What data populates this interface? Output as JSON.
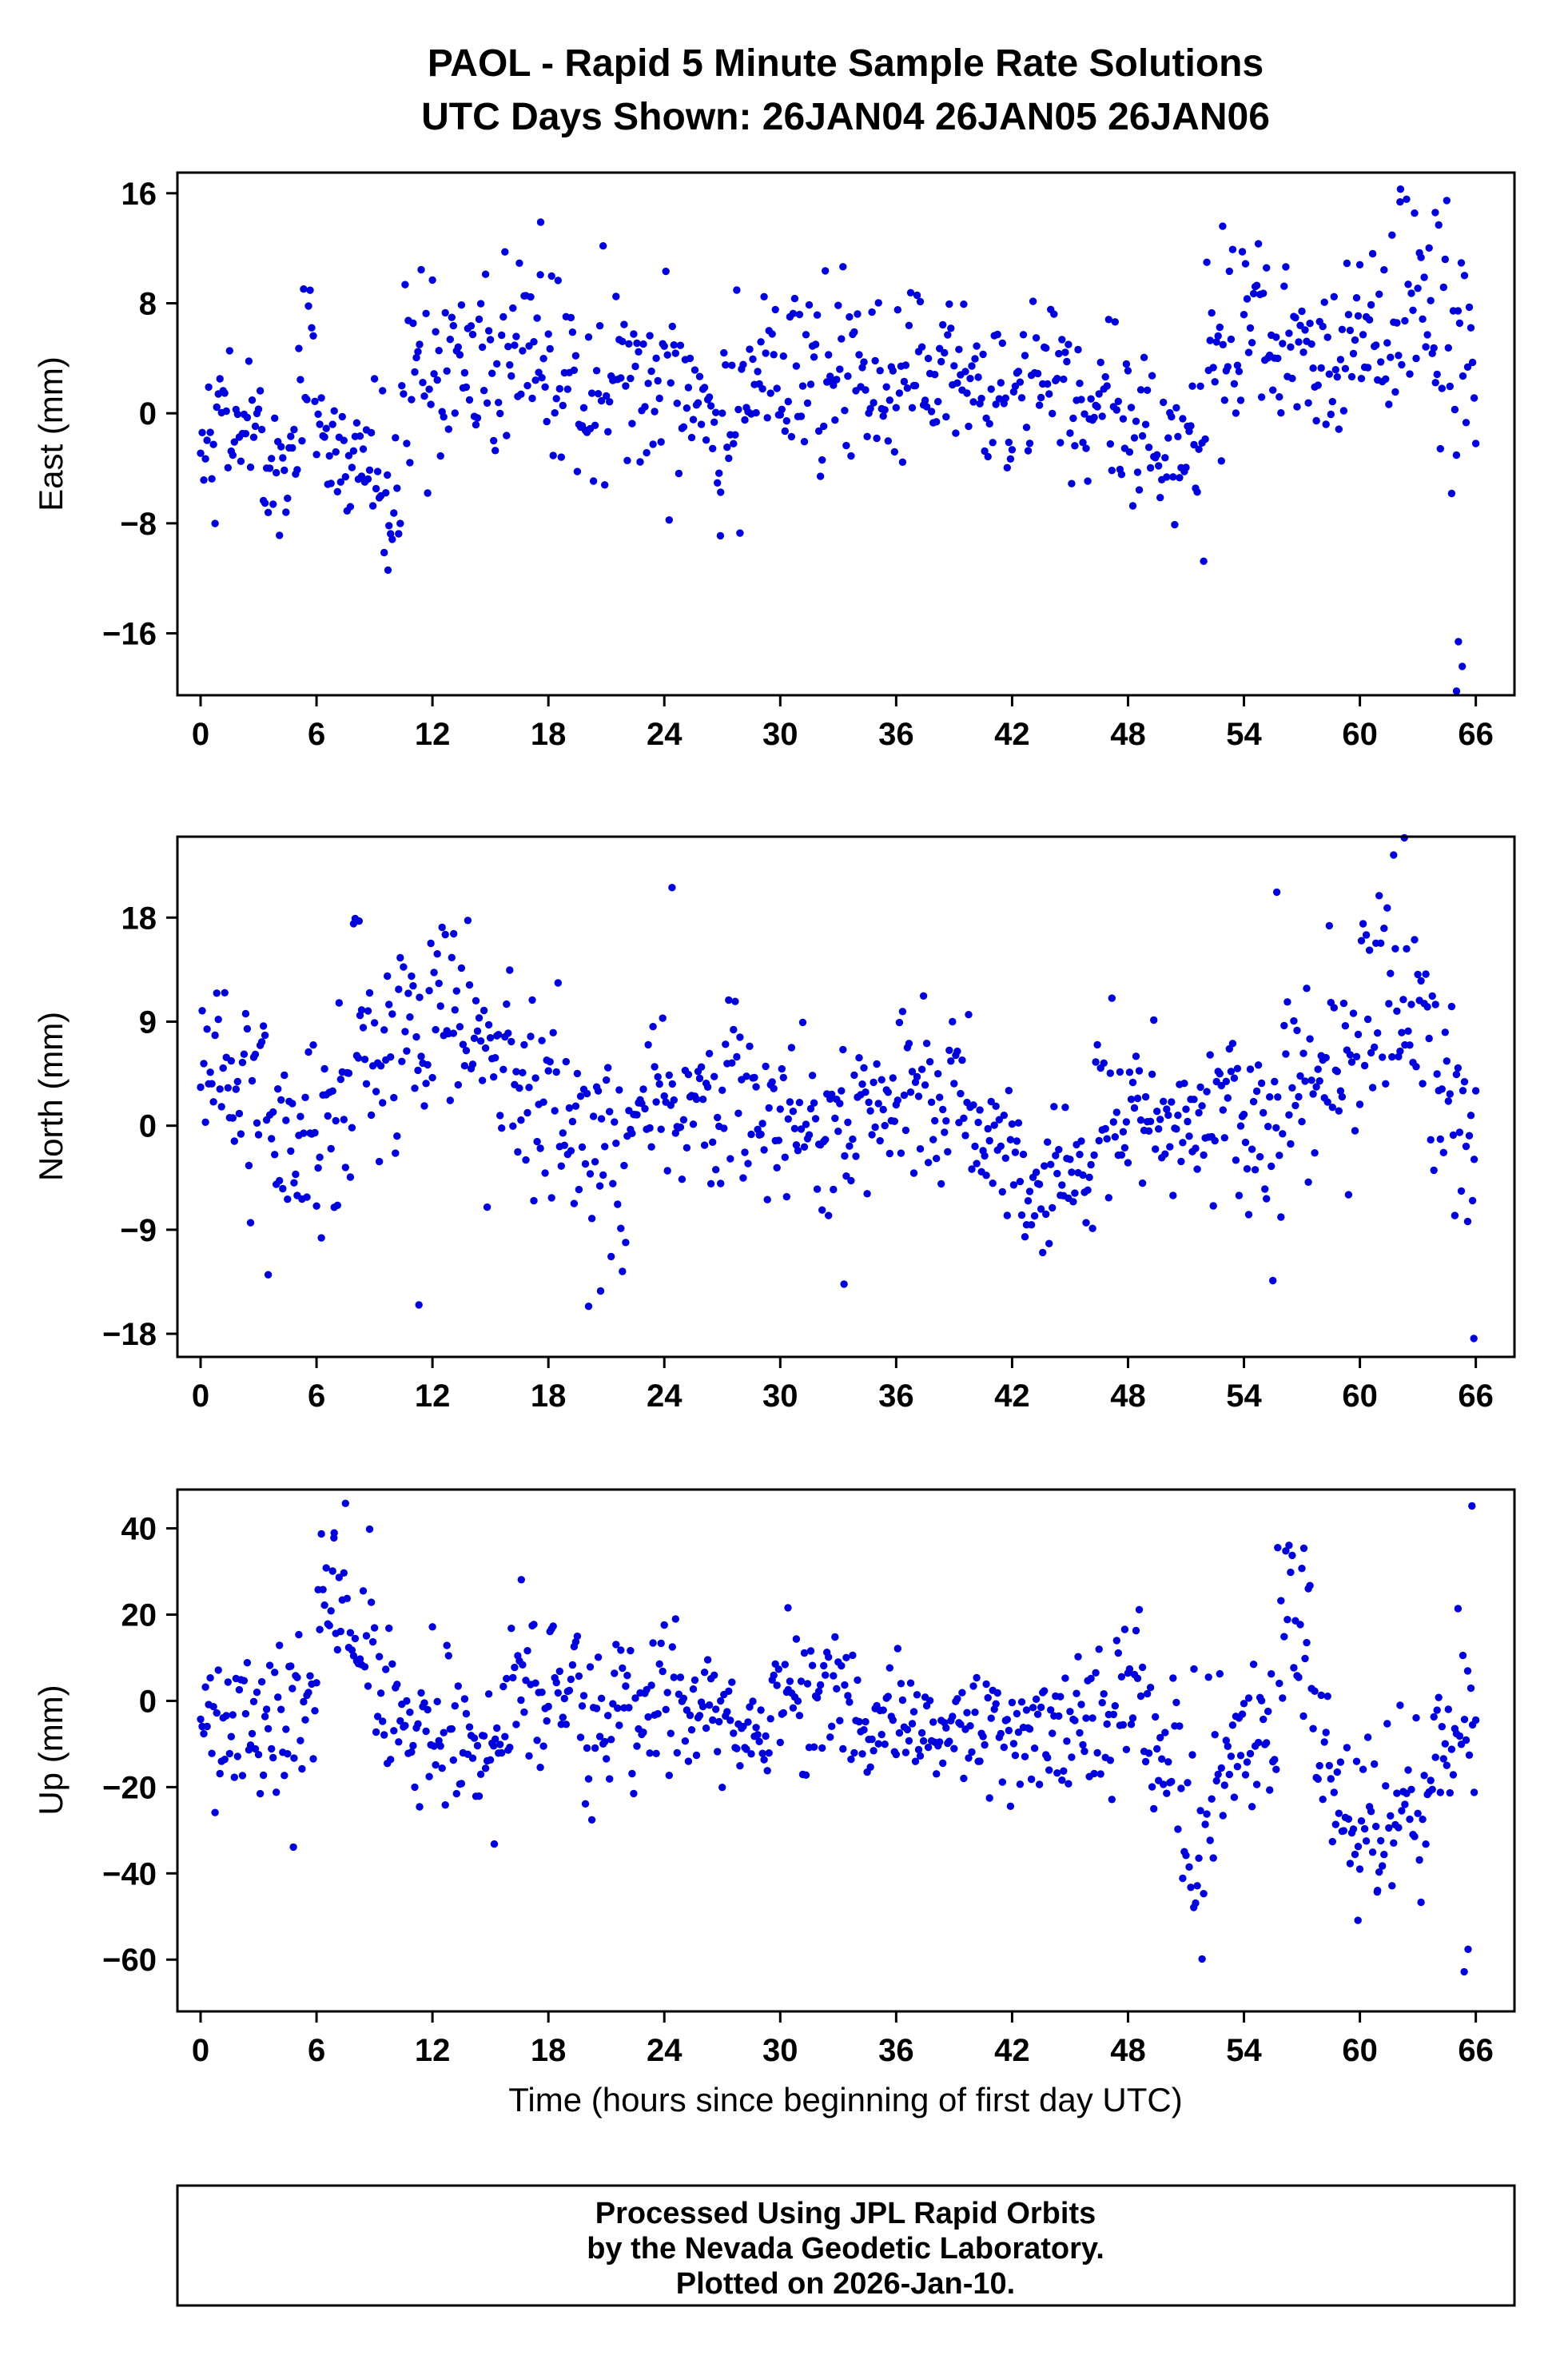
{
  "footer": {
    "line1": "Processed Using JPL Rapid Orbits",
    "line2": "by the Nevada Geodetic Laboratory.",
    "line3": "Plotted on 2026-Jan-10."
  },
  "chart_data": {
    "type": "scatter",
    "title": "PAOL - Rapid 5 Minute Sample Rate Solutions",
    "subtitle": "UTC Days Shown:  26JAN04 26JAN05 26JAN06",
    "xlabel": "Time (hours since beginning of first day UTC)",
    "marker_color": "#0000dd",
    "marker_radius_px": 4.7,
    "grid": false,
    "xlim": [
      -1.2,
      68
    ],
    "x_ticks": [
      0,
      6,
      12,
      18,
      24,
      30,
      36,
      42,
      48,
      54,
      60,
      66
    ],
    "sample_interval_hours": 0.08333,
    "panels": [
      {
        "name": "east",
        "ylabel": "East (mm)",
        "ylim": [
          -20.5,
          17.5
        ],
        "y_ticks": [
          -16,
          -8,
          0,
          8,
          16
        ],
        "seed": 42,
        "segments": [
          [
            0,
            3,
            -0.8,
            2.2
          ],
          [
            3,
            5,
            -3.5,
            2.5
          ],
          [
            5,
            6.5,
            2,
            4
          ],
          [
            6.5,
            9,
            -3.5,
            2.5
          ],
          [
            9,
            10.5,
            -5,
            3.5
          ],
          [
            10.5,
            13,
            3,
            4
          ],
          [
            13,
            15,
            2.5,
            3.5
          ],
          [
            15,
            18,
            4,
            4
          ],
          [
            18,
            21,
            3,
            3.5
          ],
          [
            21,
            24,
            2,
            4
          ],
          [
            24,
            26,
            2.5,
            4
          ],
          [
            26,
            28,
            1,
            4
          ],
          [
            28,
            31,
            3,
            3
          ],
          [
            31,
            34,
            2,
            3
          ],
          [
            34,
            37,
            2.5,
            2.8
          ],
          [
            37,
            40,
            3,
            3.2
          ],
          [
            40,
            43,
            1,
            3
          ],
          [
            43,
            45,
            2.5,
            3
          ],
          [
            45,
            48,
            0,
            3
          ],
          [
            48,
            50,
            -1.5,
            2.8
          ],
          [
            50,
            52,
            -2,
            3
          ],
          [
            52,
            54,
            4,
            3.5
          ],
          [
            54,
            57,
            5,
            3.5
          ],
          [
            57,
            59,
            3,
            3
          ],
          [
            59,
            61,
            5,
            3.5
          ],
          [
            61,
            63,
            6,
            4.5
          ],
          [
            63,
            64.5,
            7,
            4.5
          ],
          [
            64.5,
            66,
            2,
            5
          ]
        ],
        "outliers": [
          [
            9.7,
            -11.4
          ],
          [
            17.6,
            13.9
          ],
          [
            62.1,
            16.3
          ],
          [
            63.9,
            14.6
          ],
          [
            65.1,
            -16.6
          ],
          [
            65.3,
            -18.4
          ],
          [
            65.0,
            -20.2
          ],
          [
            26.9,
            -8.9
          ],
          [
            52.9,
            13.6
          ]
        ]
      },
      {
        "name": "north",
        "ylabel": "North (mm)",
        "ylim": [
          -20,
          25
        ],
        "y_ticks": [
          -18,
          -9,
          0,
          9,
          18
        ],
        "seed": 137,
        "segments": [
          [
            0,
            1.5,
            5,
            4
          ],
          [
            1.5,
            3.5,
            2,
            4.5
          ],
          [
            3.5,
            5.5,
            -2,
            4
          ],
          [
            5.5,
            7.5,
            0,
            4.5
          ],
          [
            7.5,
            9.5,
            6,
            4.5
          ],
          [
            9.5,
            12,
            8,
            4.5
          ],
          [
            12,
            14.5,
            9,
            4
          ],
          [
            14.5,
            16.5,
            5,
            4
          ],
          [
            16.5,
            18.5,
            4,
            4.5
          ],
          [
            18.5,
            20,
            0,
            3.5
          ],
          [
            20,
            22,
            -2,
            4.5
          ],
          [
            22,
            24,
            1,
            3.5
          ],
          [
            24,
            26,
            2,
            4
          ],
          [
            26,
            28,
            2,
            3.5
          ],
          [
            28,
            30,
            1,
            3.5
          ],
          [
            30,
            32,
            0,
            3.5
          ],
          [
            32,
            34,
            -1,
            4
          ],
          [
            34,
            36,
            0.5,
            3.5
          ],
          [
            36,
            38,
            3,
            4.5
          ],
          [
            38,
            40,
            2.5,
            3.8
          ],
          [
            40,
            42,
            -1,
            3.5
          ],
          [
            42,
            44,
            -4,
            3
          ],
          [
            44,
            46,
            -3.5,
            3
          ],
          [
            46,
            48,
            0,
            3.5
          ],
          [
            48,
            50,
            1.5,
            3.5
          ],
          [
            50,
            52,
            0,
            3.5
          ],
          [
            52,
            54,
            1,
            4
          ],
          [
            54,
            56,
            0,
            4.5
          ],
          [
            56,
            58,
            3,
            4
          ],
          [
            58,
            60,
            7,
            4.5
          ],
          [
            60,
            62,
            10,
            5
          ],
          [
            62,
            63.5,
            9,
            5
          ],
          [
            63.5,
            65,
            5,
            5
          ],
          [
            65,
            66,
            0,
            5
          ]
        ],
        "outliers": [
          [
            24.4,
            20.6
          ],
          [
            62.3,
            24.9
          ],
          [
            55.7,
            20.2
          ],
          [
            65.9,
            -18.4
          ],
          [
            33.3,
            -13.7
          ],
          [
            20.7,
            -14.3
          ],
          [
            11.3,
            -15.5
          ],
          [
            8.2,
            17.7
          ],
          [
            13.1,
            16.6
          ]
        ]
      },
      {
        "name": "up",
        "ylabel": "Up (mm)",
        "ylim": [
          -72,
          49
        ],
        "y_ticks": [
          -60,
          -40,
          -20,
          0,
          20,
          40
        ],
        "seed": 2024,
        "segments": [
          [
            0,
            1.5,
            -3,
            8
          ],
          [
            1.5,
            3,
            0,
            10
          ],
          [
            3,
            4.5,
            -5,
            10
          ],
          [
            4.5,
            6,
            3,
            12
          ],
          [
            6,
            7.5,
            20,
            10
          ],
          [
            7.5,
            9,
            15,
            10
          ],
          [
            9,
            10.5,
            0,
            9
          ],
          [
            10.5,
            12,
            -5,
            8
          ],
          [
            12,
            14,
            -8,
            8
          ],
          [
            14,
            16,
            -10,
            8
          ],
          [
            16,
            18,
            0,
            10
          ],
          [
            18,
            19.5,
            5,
            9
          ],
          [
            19.5,
            21.5,
            -5,
            8
          ],
          [
            21.5,
            23,
            -3,
            9
          ],
          [
            23,
            24.5,
            2,
            9
          ],
          [
            24.5,
            26,
            0,
            8
          ],
          [
            26,
            27.5,
            -4,
            8
          ],
          [
            27.5,
            29.5,
            -9,
            6
          ],
          [
            29.5,
            31,
            0,
            9
          ],
          [
            31,
            32.5,
            5,
            9
          ],
          [
            32.5,
            34,
            -2,
            9
          ],
          [
            34,
            36,
            -8,
            7
          ],
          [
            36,
            38,
            -6,
            7
          ],
          [
            38,
            40,
            -7,
            7
          ],
          [
            40,
            42,
            -6,
            7
          ],
          [
            42,
            44,
            -8,
            7
          ],
          [
            44,
            46,
            -7,
            7
          ],
          [
            46,
            47.5,
            -4,
            8
          ],
          [
            47.5,
            49,
            3,
            8
          ],
          [
            49,
            50.5,
            -8,
            10
          ],
          [
            50.5,
            52.5,
            -25,
            12
          ],
          [
            52.5,
            54,
            -12,
            9
          ],
          [
            54,
            55.5,
            -8,
            9
          ],
          [
            55.5,
            57.5,
            10,
            14
          ],
          [
            57.5,
            59,
            -15,
            10
          ],
          [
            59,
            60.5,
            -27,
            9
          ],
          [
            60.5,
            62,
            -28,
            8
          ],
          [
            62,
            63.5,
            -25,
            9
          ],
          [
            63.5,
            65,
            -12,
            10
          ],
          [
            65,
            66,
            -5,
            12
          ]
        ],
        "outliers": [
          [
            65.8,
            45.2
          ],
          [
            65.4,
            -62.8
          ],
          [
            65.6,
            -57.6
          ],
          [
            57.1,
            35.4
          ],
          [
            6.9,
            37.8
          ],
          [
            59.9,
            -50.9
          ],
          [
            4.8,
            -33.9
          ],
          [
            15.2,
            -33.2
          ],
          [
            16.6,
            28.1
          ],
          [
            30.4,
            21.6
          ],
          [
            51.4,
            -47.9
          ],
          [
            60.9,
            -44.3
          ]
        ]
      }
    ]
  }
}
